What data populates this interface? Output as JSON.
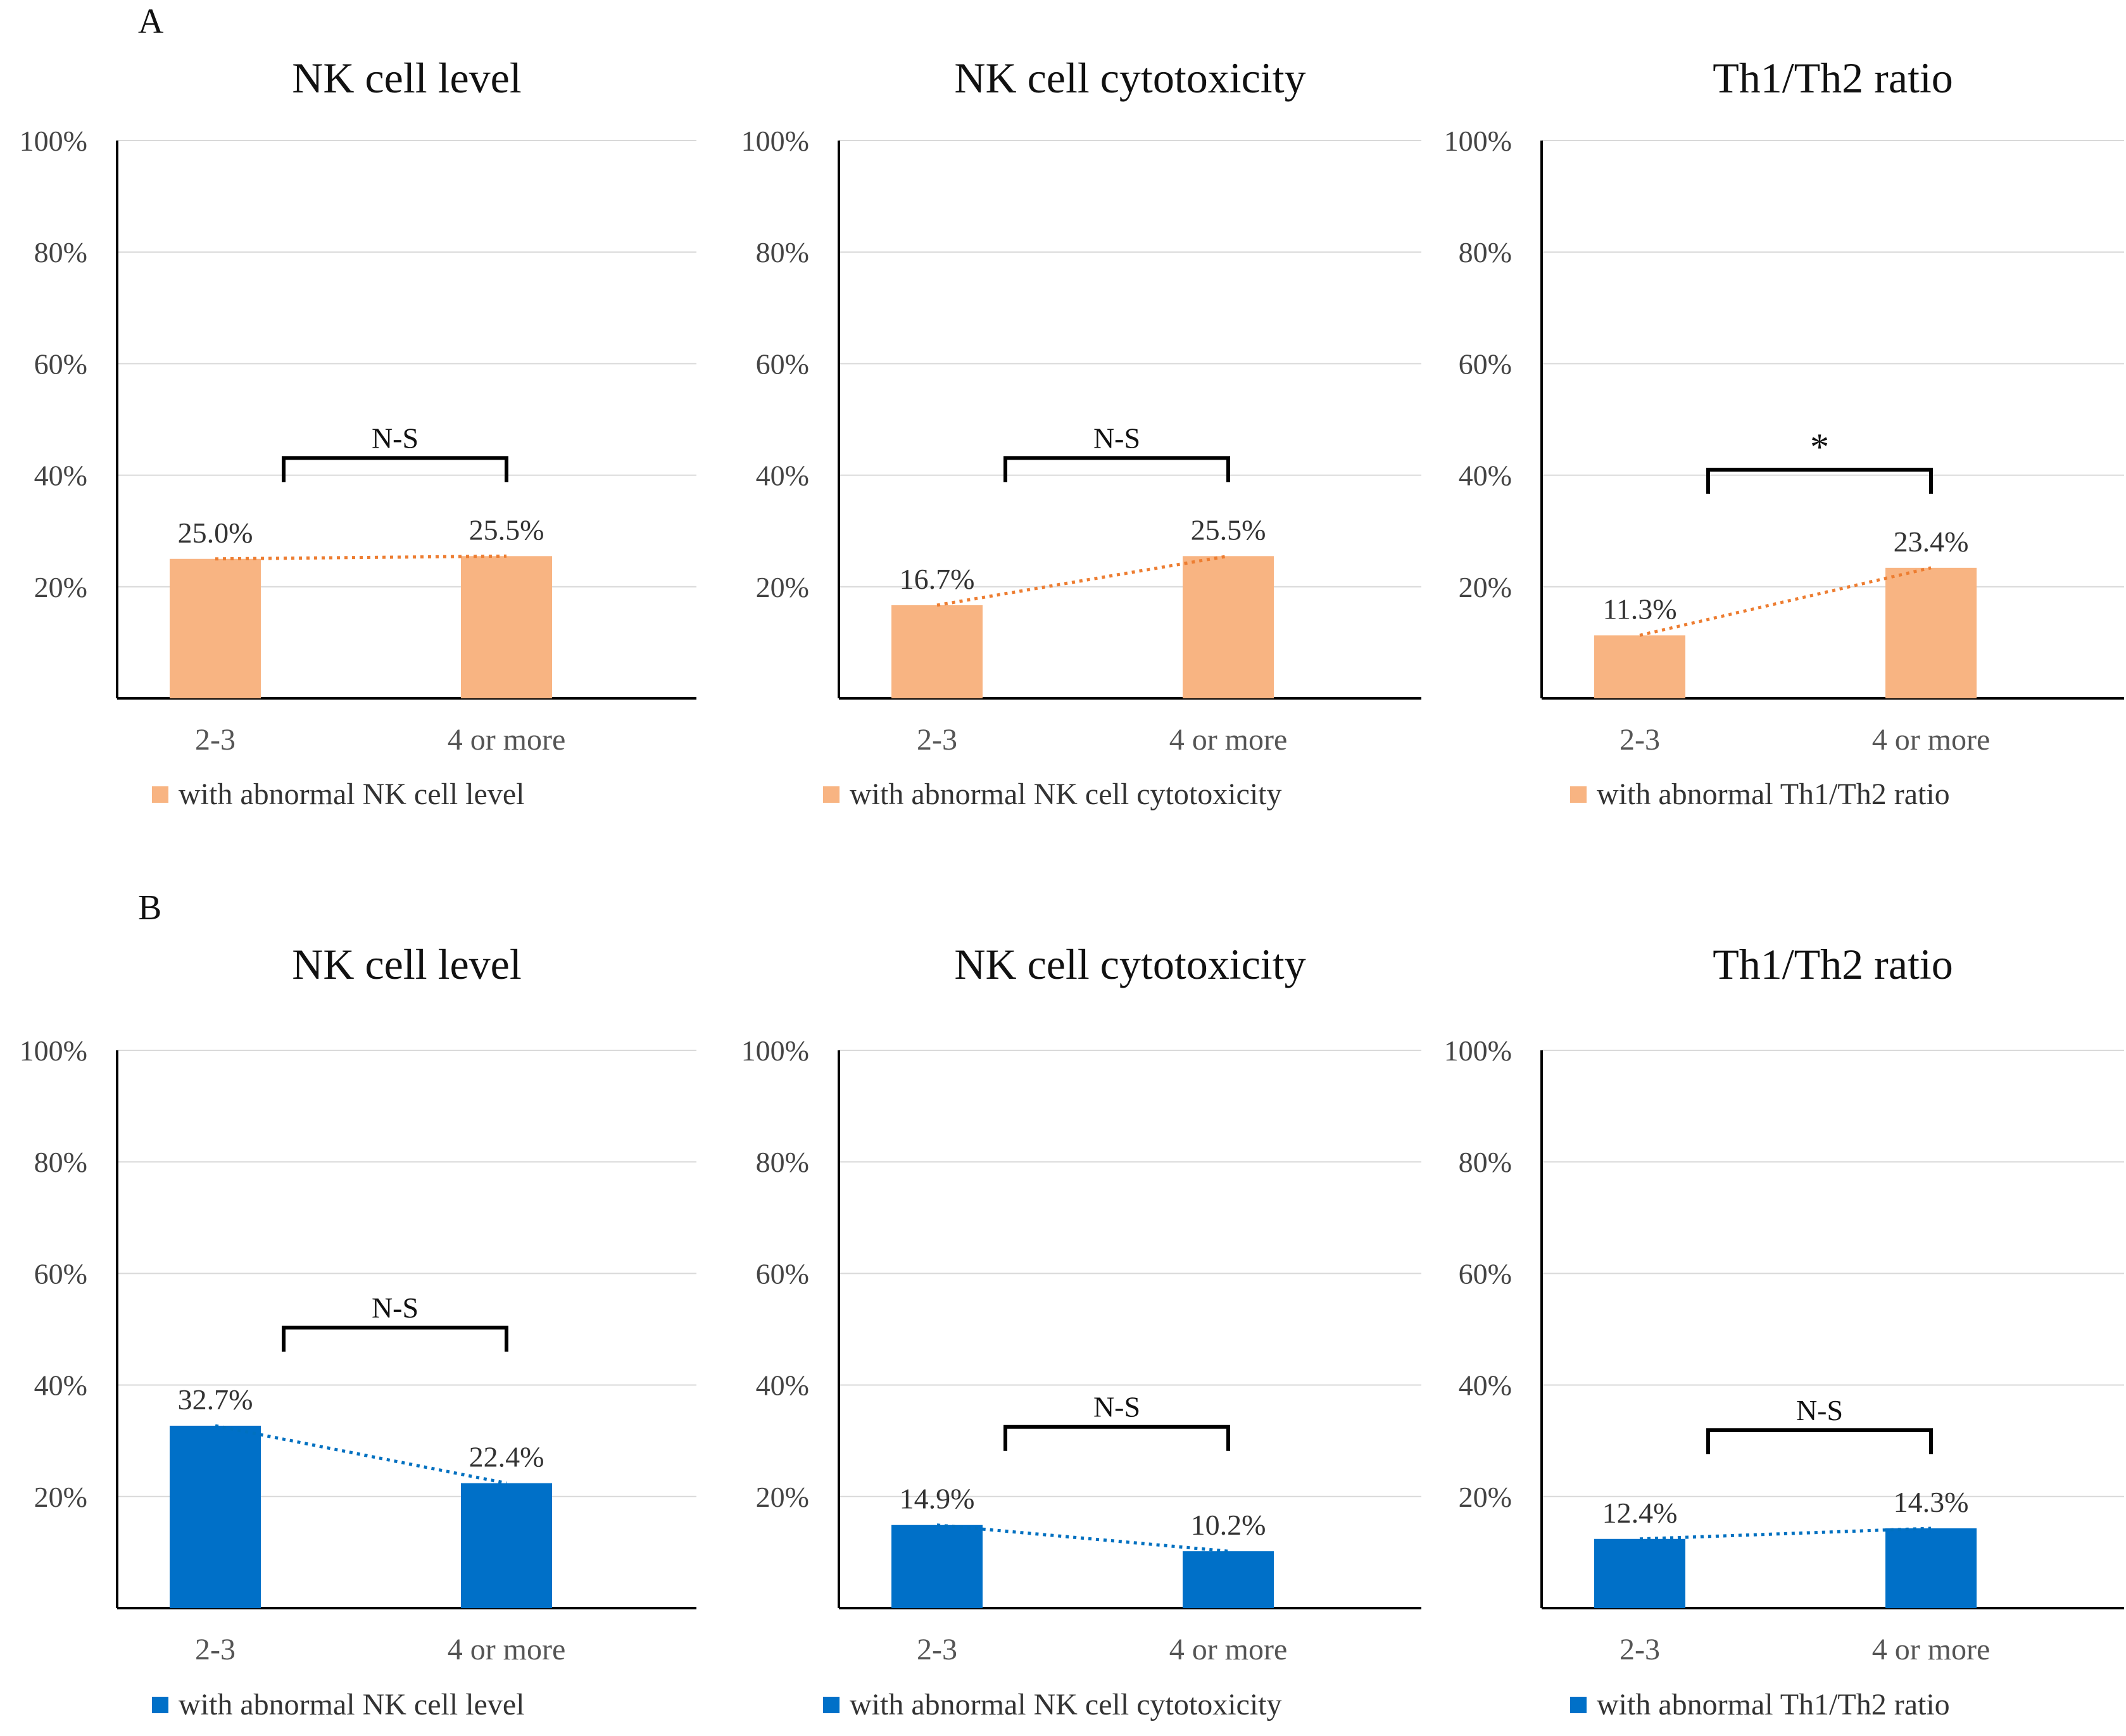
{
  "panels": [
    {
      "letter": "A",
      "bar_color": "#F8B482",
      "trend_color": "#ED7D31",
      "charts": [
        {
          "type": "bar",
          "title": "NK cell level",
          "categories": [
            "2-3",
            "4 or more"
          ],
          "values": [
            25.0,
            25.5
          ],
          "value_labels": [
            "25.0%",
            "25.5%"
          ],
          "legend": "with abnormal NK cell level",
          "significance": "N-S",
          "ylim": [
            0,
            100
          ],
          "yticks": [
            "20%",
            "40%",
            "60%",
            "80%",
            "100%"
          ],
          "grid": true
        },
        {
          "type": "bar",
          "title": "NK cell cytotoxicity",
          "categories": [
            "2-3",
            "4 or more"
          ],
          "values": [
            16.7,
            25.5
          ],
          "value_labels": [
            "16.7%",
            "25.5%"
          ],
          "legend": "with abnormal NK cell cytotoxicity",
          "significance": "N-S",
          "ylim": [
            0,
            100
          ],
          "yticks": [
            "20%",
            "40%",
            "60%",
            "80%",
            "100%"
          ],
          "grid": true
        },
        {
          "type": "bar",
          "title": "Th1/Th2 ratio",
          "categories": [
            "2-3",
            "4 or more"
          ],
          "values": [
            11.3,
            23.4
          ],
          "value_labels": [
            "11.3%",
            "23.4%"
          ],
          "legend": "with abnormal Th1/Th2 ratio",
          "significance": "*",
          "ylim": [
            0,
            100
          ],
          "yticks": [
            "20%",
            "40%",
            "60%",
            "80%",
            "100%"
          ],
          "grid": true
        }
      ]
    },
    {
      "letter": "B",
      "bar_color": "#0070C8",
      "trend_color": "#0070C0",
      "charts": [
        {
          "type": "bar",
          "title": "NK cell level",
          "categories": [
            "2-3",
            "4 or more"
          ],
          "values": [
            32.7,
            22.4
          ],
          "value_labels": [
            "32.7%",
            "22.4%"
          ],
          "legend": "with abnormal NK cell level",
          "significance": "N-S",
          "ylim": [
            0,
            100
          ],
          "yticks": [
            "20%",
            "40%",
            "60%",
            "80%",
            "100%"
          ],
          "grid": true
        },
        {
          "type": "bar",
          "title": "NK cell cytotoxicity",
          "categories": [
            "2-3",
            "4 or more"
          ],
          "values": [
            14.9,
            10.2
          ],
          "value_labels": [
            "14.9%",
            "10.2%"
          ],
          "legend": "with abnormal NK cell cytotoxicity",
          "significance": "N-S",
          "ylim": [
            0,
            100
          ],
          "yticks": [
            "20%",
            "40%",
            "60%",
            "80%",
            "100%"
          ],
          "grid": true
        },
        {
          "type": "bar",
          "title": "Th1/Th2 ratio",
          "categories": [
            "2-3",
            "4 or more"
          ],
          "values": [
            12.4,
            14.3
          ],
          "value_labels": [
            "12.4%",
            "14.3%"
          ],
          "legend": "with abnormal Th1/Th2 ratio",
          "significance": "N-S",
          "ylim": [
            0,
            100
          ],
          "yticks": [
            "20%",
            "40%",
            "60%",
            "80%",
            "100%"
          ],
          "grid": true
        }
      ]
    }
  ],
  "chart_data": [
    {
      "panel": "A",
      "type": "bar",
      "title": "NK cell level",
      "categories": [
        "2-3",
        "4 or more"
      ],
      "series": [
        {
          "name": "with abnormal NK cell level",
          "values": [
            25.0,
            25.5
          ]
        }
      ],
      "ylim": [
        0,
        100
      ]
    },
    {
      "panel": "A",
      "type": "bar",
      "title": "NK cell cytotoxicity",
      "categories": [
        "2-3",
        "4 or more"
      ],
      "series": [
        {
          "name": "with abnormal NK cell cytotoxicity",
          "values": [
            16.7,
            25.5
          ]
        }
      ],
      "ylim": [
        0,
        100
      ]
    },
    {
      "panel": "A",
      "type": "bar",
      "title": "Th1/Th2 ratio",
      "categories": [
        "2-3",
        "4 or more"
      ],
      "series": [
        {
          "name": "with abnormal Th1/Th2 ratio",
          "values": [
            11.3,
            23.4
          ]
        }
      ],
      "ylim": [
        0,
        100
      ]
    },
    {
      "panel": "B",
      "type": "bar",
      "title": "NK cell level",
      "categories": [
        "2-3",
        "4 or more"
      ],
      "series": [
        {
          "name": "with abnormal NK cell level",
          "values": [
            32.7,
            22.4
          ]
        }
      ],
      "ylim": [
        0,
        100
      ]
    },
    {
      "panel": "B",
      "type": "bar",
      "title": "NK cell cytotoxicity",
      "categories": [
        "2-3",
        "4 or more"
      ],
      "series": [
        {
          "name": "with abnormal NK cell cytotoxicity",
          "values": [
            14.9,
            10.2
          ]
        }
      ],
      "ylim": [
        0,
        100
      ]
    },
    {
      "panel": "B",
      "type": "bar",
      "title": "Th1/Th2 ratio",
      "categories": [
        "2-3",
        "4 or more"
      ],
      "series": [
        {
          "name": "with abnormal Th1/Th2 ratio",
          "values": [
            12.4,
            14.3
          ]
        }
      ],
      "ylim": [
        0,
        100
      ]
    }
  ]
}
